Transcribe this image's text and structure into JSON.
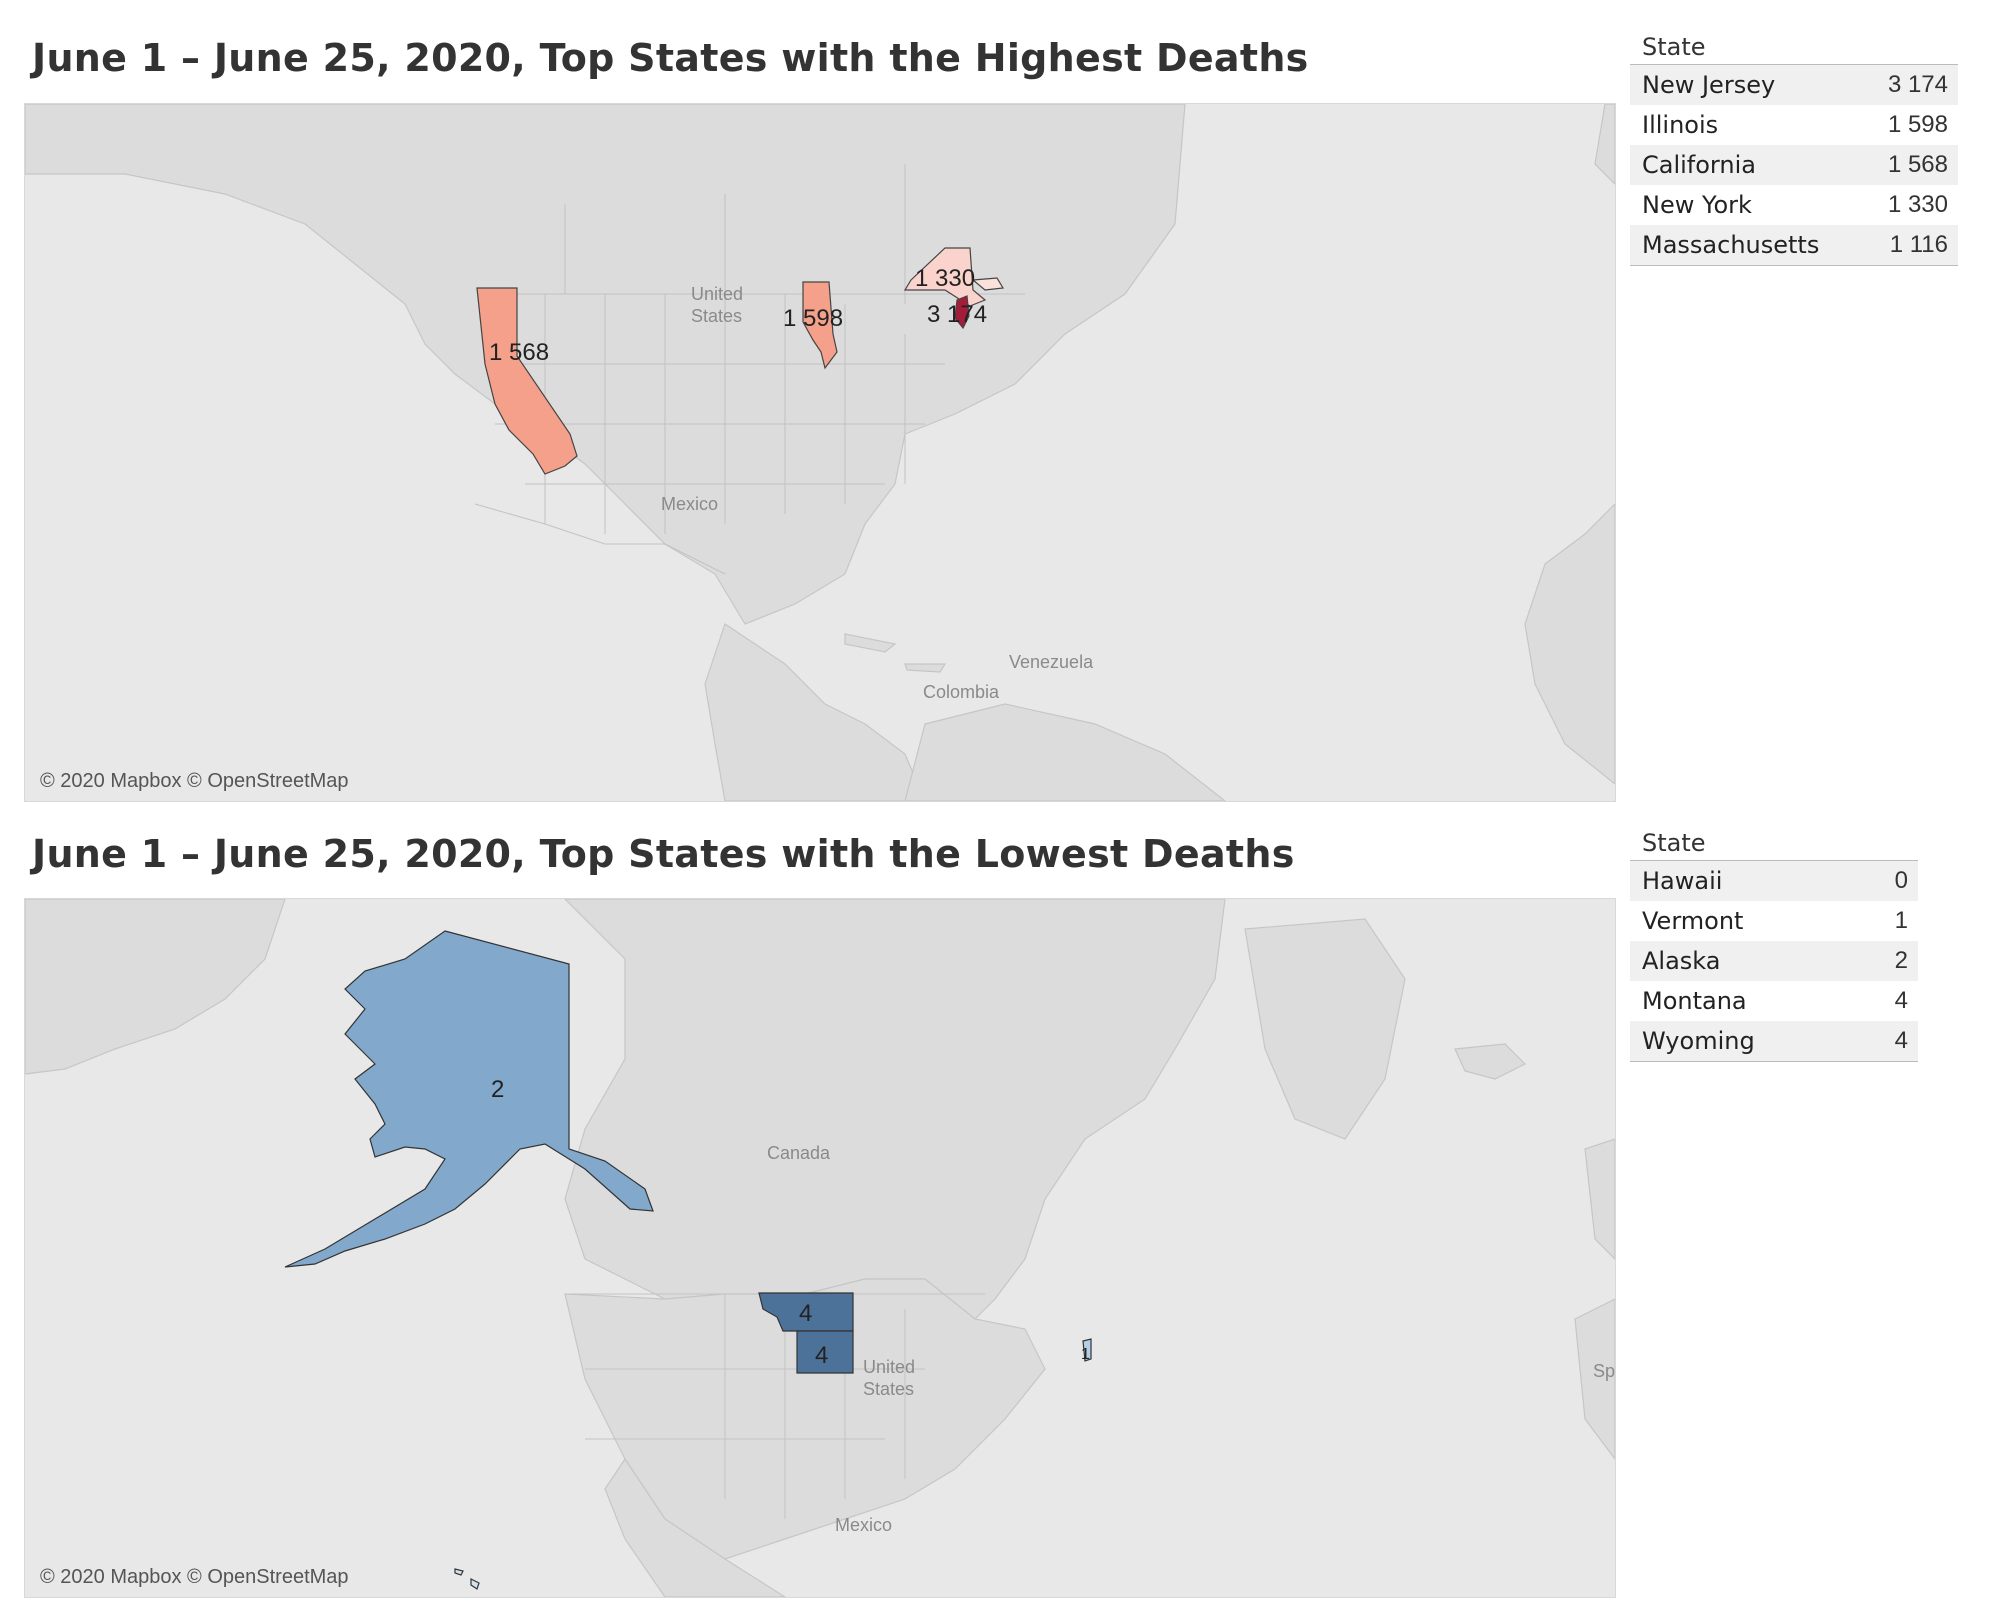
{
  "maps": {
    "top": {
      "title": "June 1 – June 25, 2020, Top States with the Highest Deaths",
      "attribution": "© 2020 Mapbox © OpenStreetMap",
      "place_labels": [
        "United",
        "States",
        "Mexico",
        "Venezuela",
        "Colombia"
      ],
      "legend_header": "State",
      "rows": [
        {
          "state": "New Jersey",
          "value": "3 174",
          "color": "#a51c3a"
        },
        {
          "state": "Illinois",
          "value": "1 598",
          "color": "#f4a08a"
        },
        {
          "state": "California",
          "value": "1 568",
          "color": "#f4a08a"
        },
        {
          "state": "New York",
          "value": "1 330",
          "color": "#f9d3cc"
        },
        {
          "state": "Massachusetts",
          "value": "1 116",
          "color": "#fbe1db"
        }
      ],
      "map_labels": [
        "1 330",
        "1 598",
        "3 174",
        "1 568"
      ]
    },
    "bottom": {
      "title": "June 1 – June 25, 2020, Top States with the Lowest Deaths",
      "attribution": "© 2020 Mapbox © OpenStreetMap",
      "place_labels": [
        "Canada",
        "United",
        "States",
        "Mexico",
        "Sp"
      ],
      "legend_header": "State",
      "rows": [
        {
          "state": "Hawaii",
          "value": "0",
          "color": "#d3e2f0"
        },
        {
          "state": "Vermont",
          "value": "1",
          "color": "#b5cde6"
        },
        {
          "state": "Alaska",
          "value": "2",
          "color": "#82a8cb"
        },
        {
          "state": "Montana",
          "value": "4",
          "color": "#4d7299"
        },
        {
          "state": "Wyoming",
          "value": "4",
          "color": "#4d7299"
        }
      ],
      "map_labels": [
        "2",
        "4",
        "4",
        "1"
      ]
    }
  }
}
